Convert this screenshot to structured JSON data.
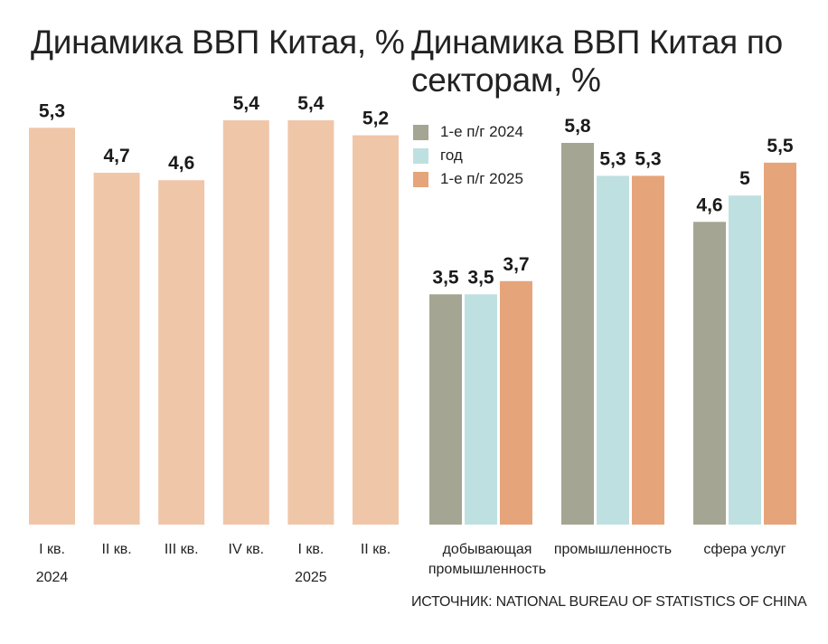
{
  "titles": {
    "left": "Динамика ВВП Китая, %",
    "right": "Динамика ВВП Китая по секторам, %"
  },
  "source": "ИСТОЧНИК: NATIONAL BUREAU OF STATISTICS OF CHINA",
  "colors": {
    "quarterly": "#f0c6a9",
    "h1_2024": "#a5a593",
    "year": "#bfe0e1",
    "h1_2025": "#e6a47b"
  },
  "chart_data": [
    {
      "type": "bar",
      "title": "Динамика ВВП Китая, %",
      "categories": [
        "I кв.",
        "II кв.",
        "III кв.",
        "IV кв.",
        "I кв.",
        "II кв."
      ],
      "group_labels": [
        "2024",
        "2025"
      ],
      "values": [
        5.3,
        4.7,
        4.6,
        5.4,
        5.4,
        5.2
      ],
      "value_labels": [
        "5,3",
        "4,7",
        "4,6",
        "5,4",
        "5,4",
        "5,2"
      ],
      "ylim": [
        0,
        5.4
      ],
      "grid": false
    },
    {
      "type": "bar",
      "title": "Динамика ВВП Китая по секторам, %",
      "categories": [
        "добывающая промышленность",
        "промышленность",
        "сфера услуг"
      ],
      "category_lines": [
        [
          "добывающая",
          "промышленность"
        ],
        [
          "промышленность"
        ],
        [
          "сфера услуг"
        ]
      ],
      "series": [
        {
          "name": "1-е п/г 2024",
          "values": [
            3.5,
            5.8,
            4.6
          ],
          "value_labels": [
            "3,5",
            "5,8",
            "4,6"
          ]
        },
        {
          "name": "год",
          "values": [
            3.5,
            5.3,
            5.0
          ],
          "value_labels": [
            "3,5",
            "5,3",
            "5"
          ]
        },
        {
          "name": "1-е п/г 2025",
          "values": [
            3.7,
            5.3,
            5.5
          ],
          "value_labels": [
            "3,7",
            "5,3",
            "5,5"
          ]
        }
      ],
      "legend": "top-left",
      "ylim": [
        0,
        5.8
      ],
      "grid": false
    }
  ]
}
